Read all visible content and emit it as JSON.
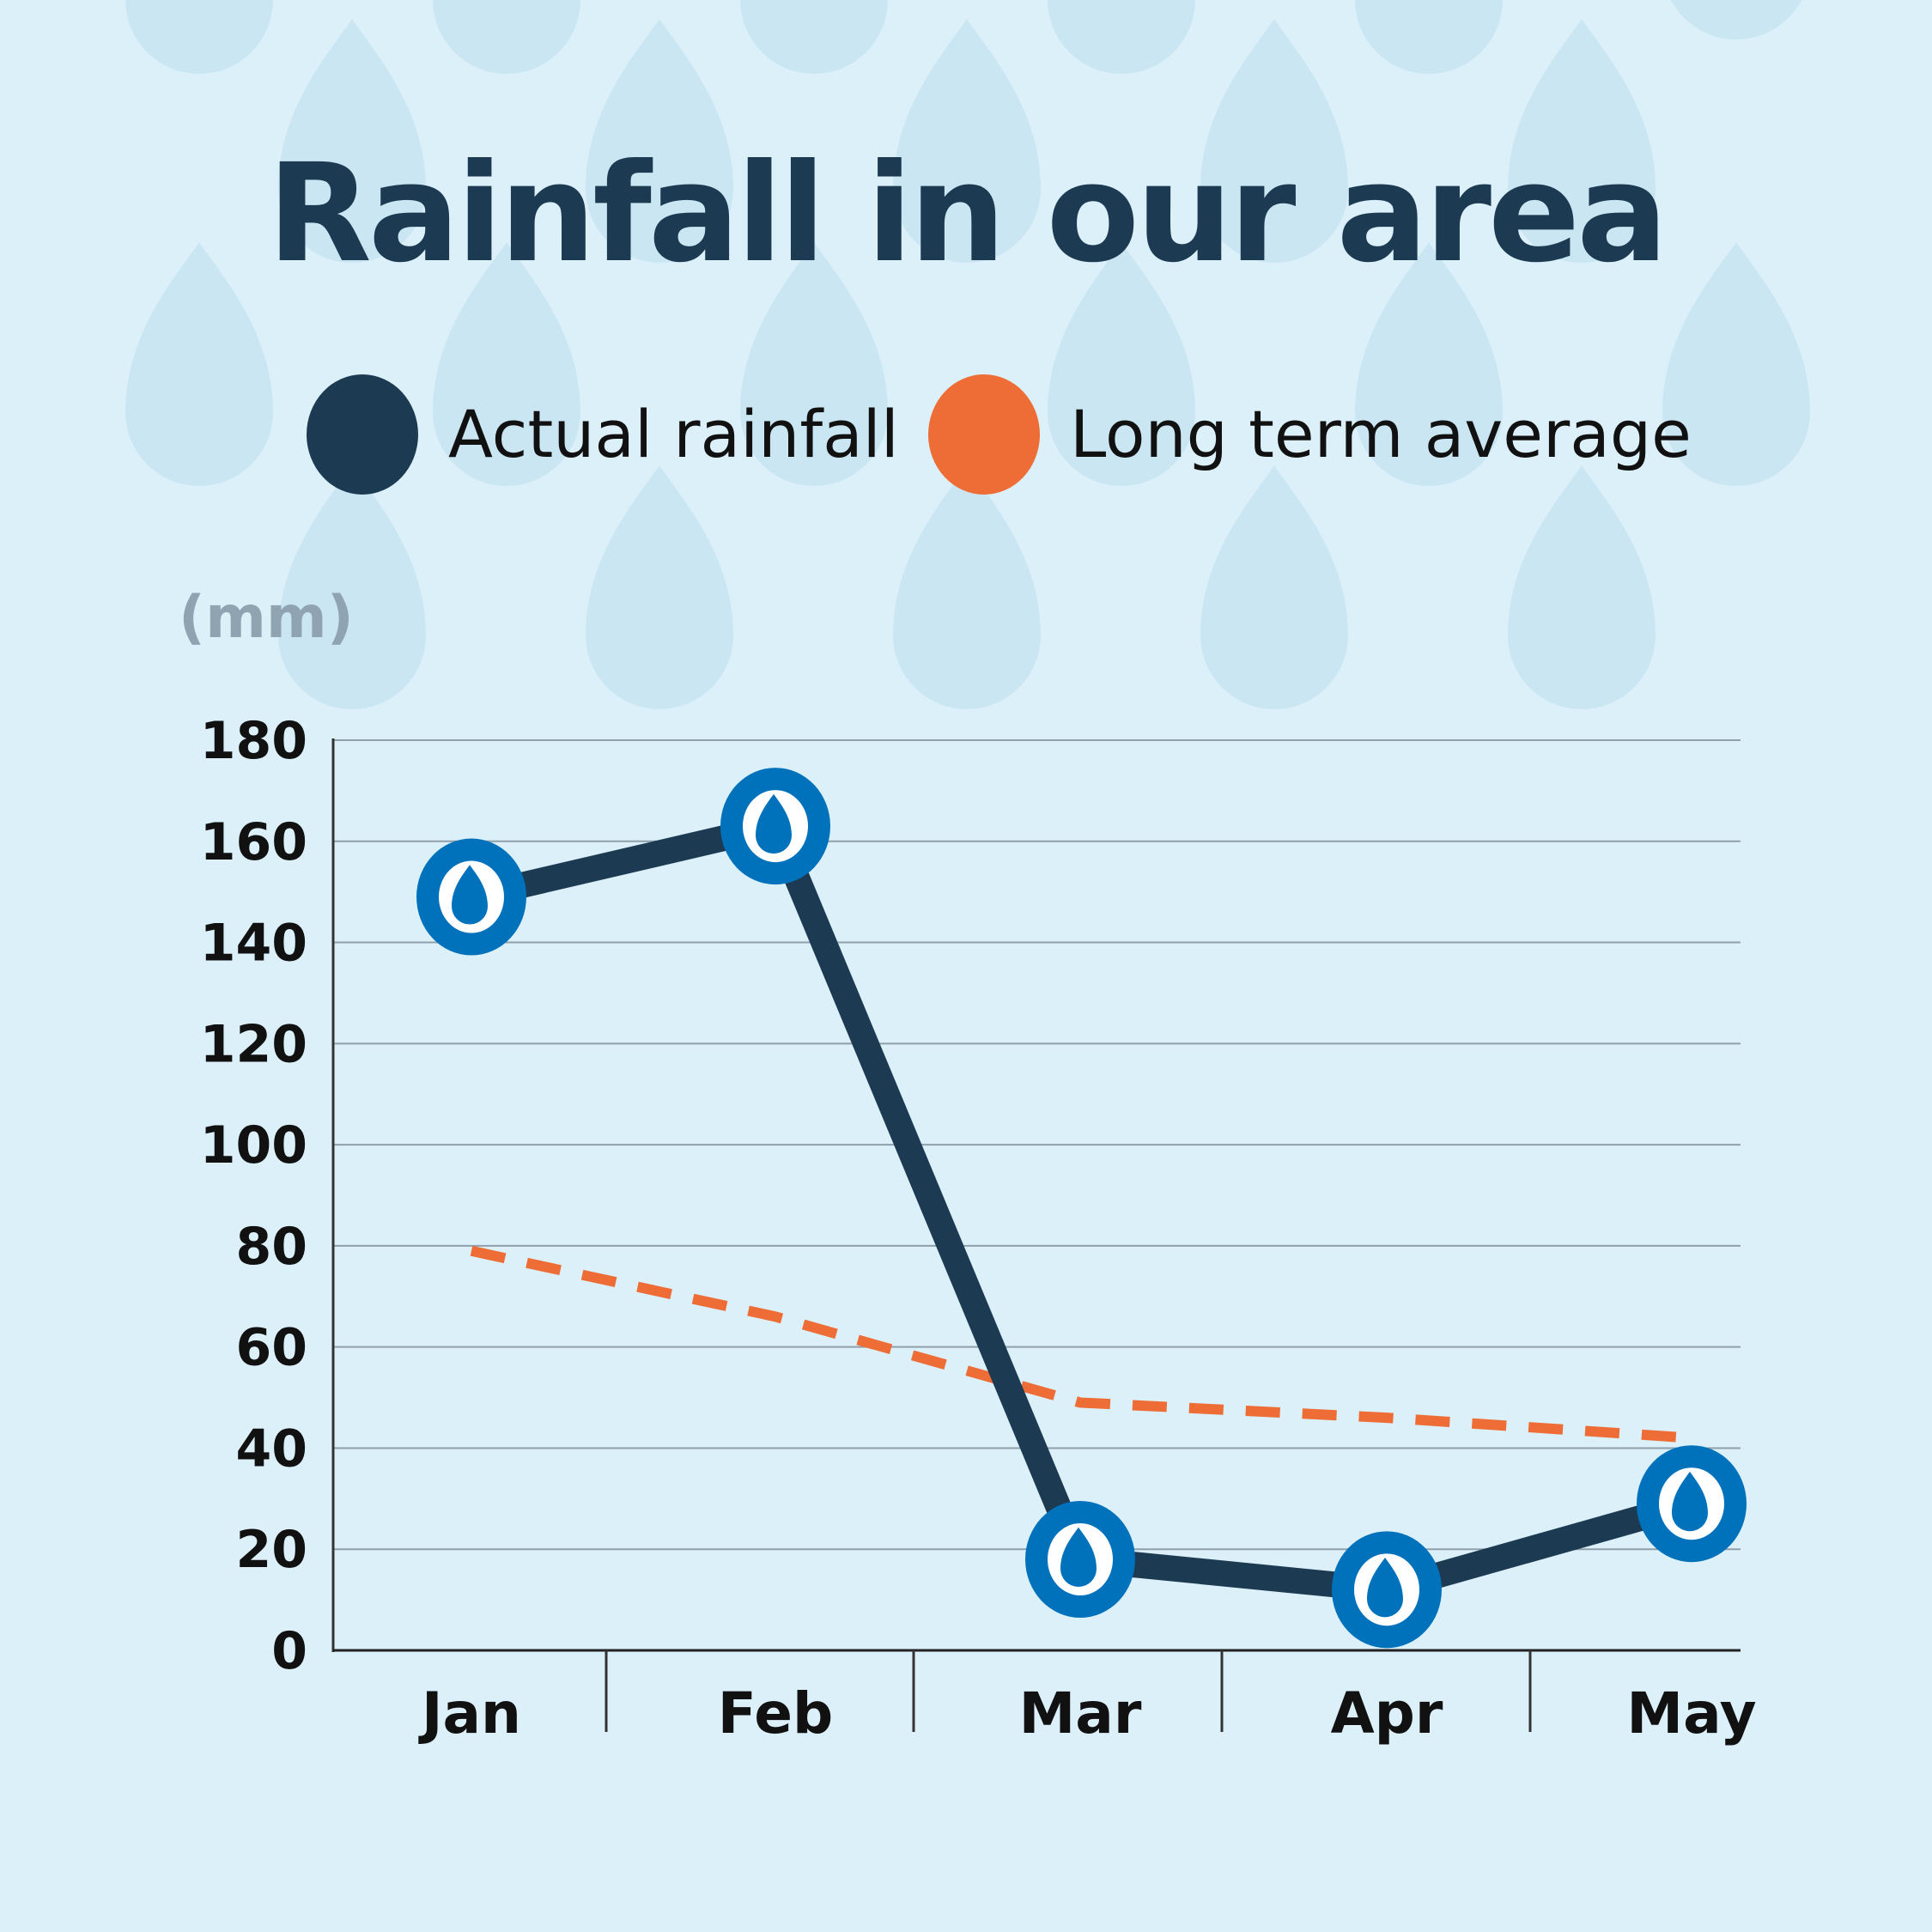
{
  "colors": {
    "background": "#dcf0fa",
    "background_drop": "#cbe6f3",
    "actual": "#1c3b52",
    "average": "#ee6d36",
    "marker": "#0072bc",
    "marker_drop": "#ffffff",
    "grid": "#8fa0aa",
    "unit_text": "#8fa3b0"
  },
  "legend": {
    "actual": {
      "label": "Actual rainfall",
      "icon": "dark-circle-icon"
    },
    "average": {
      "label": "Long term average",
      "icon": "orange-circle-icon"
    }
  },
  "chart_data": {
    "type": "line",
    "title": "Rainfall in our area",
    "ylabel": "(mm)",
    "xlabel": "",
    "categories": [
      "Jan",
      "Feb",
      "Mar",
      "Apr",
      "May"
    ],
    "ylim": [
      0,
      180
    ],
    "yticks": [
      0,
      20,
      40,
      60,
      80,
      100,
      120,
      140,
      160,
      180
    ],
    "grid": true,
    "legend_position": "top",
    "series": [
      {
        "name": "Actual rainfall",
        "values": [
          149,
          163,
          18,
          12,
          29
        ],
        "style": "solid",
        "marker": "raindrop-icon"
      },
      {
        "name": "Long term average",
        "values": [
          79,
          66,
          49,
          46,
          42
        ],
        "style": "dashed"
      }
    ]
  }
}
